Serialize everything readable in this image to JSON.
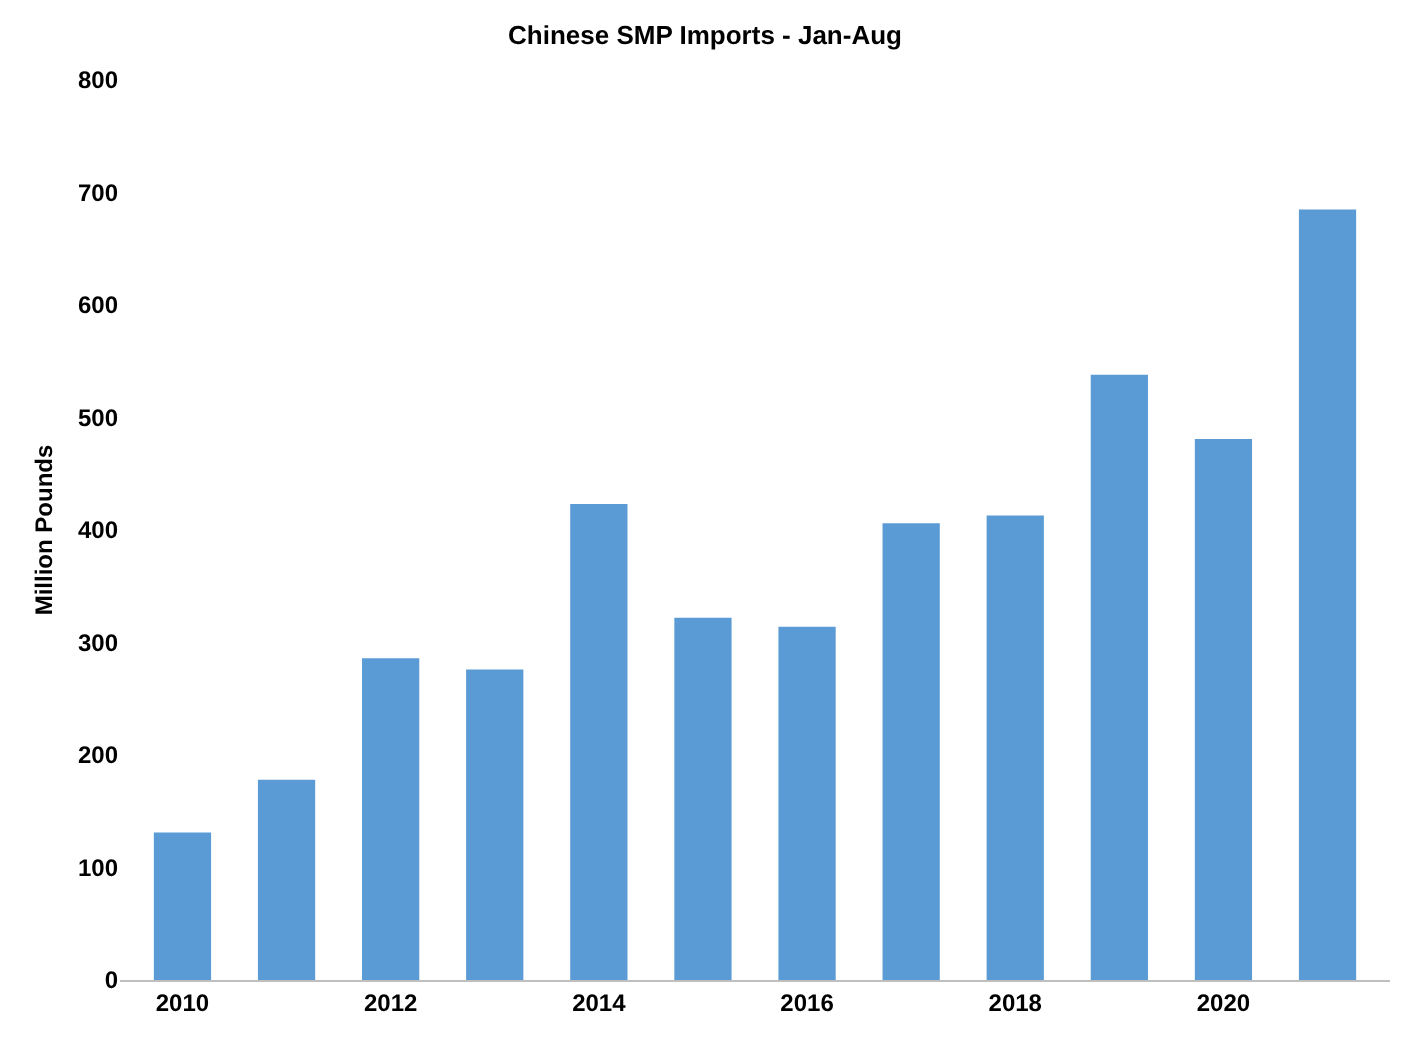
{
  "chart_data": {
    "type": "bar",
    "title": "Chinese SMP Imports - Jan-Aug",
    "ylabel": "Million Pounds",
    "categories": [
      "2010",
      null,
      "2012",
      null,
      "2014",
      null,
      "2016",
      null,
      "2018",
      null,
      "2020",
      null
    ],
    "values": [
      131,
      178,
      286,
      276,
      423,
      322,
      314,
      406,
      413,
      538,
      481,
      685
    ],
    "color": "#5b9bd5",
    "ylim": [
      0,
      800
    ],
    "yticks": [
      0,
      100,
      200,
      300,
      400,
      500,
      600,
      700,
      800
    ],
    "grid": false
  }
}
